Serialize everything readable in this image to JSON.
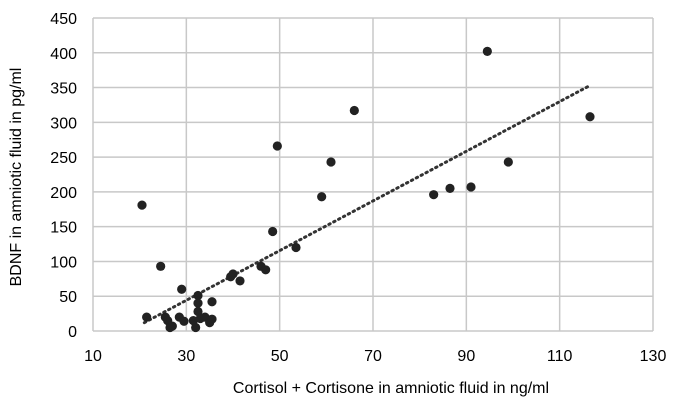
{
  "chart_data": {
    "type": "scatter",
    "xlabel": "Cortisol + Cortisone in amniotic fluid in ng/ml",
    "ylabel": "BDNF in amniotic fluid in pg/ml",
    "xlim": [
      10,
      130
    ],
    "ylim": [
      0,
      450
    ],
    "x_ticks": [
      10,
      30,
      50,
      70,
      90,
      110,
      130
    ],
    "y_ticks": [
      0,
      50,
      100,
      150,
      200,
      250,
      300,
      350,
      400,
      450
    ],
    "grid": true,
    "point_color": "#222222",
    "trendline": {
      "style": "dotted",
      "x": [
        21,
        116.5
      ],
      "y": [
        12,
        353
      ]
    },
    "points": [
      {
        "x": 20.5,
        "y": 181
      },
      {
        "x": 21.5,
        "y": 20
      },
      {
        "x": 24.5,
        "y": 93
      },
      {
        "x": 25.5,
        "y": 20
      },
      {
        "x": 26,
        "y": 15
      },
      {
        "x": 26.5,
        "y": 5
      },
      {
        "x": 27,
        "y": 7
      },
      {
        "x": 28.5,
        "y": 20
      },
      {
        "x": 29,
        "y": 60
      },
      {
        "x": 29.5,
        "y": 14
      },
      {
        "x": 31.5,
        "y": 15
      },
      {
        "x": 32,
        "y": 5
      },
      {
        "x": 32.5,
        "y": 28
      },
      {
        "x": 32.5,
        "y": 40
      },
      {
        "x": 32.5,
        "y": 51
      },
      {
        "x": 33,
        "y": 18
      },
      {
        "x": 34,
        "y": 20
      },
      {
        "x": 35,
        "y": 12
      },
      {
        "x": 35.5,
        "y": 17
      },
      {
        "x": 35.5,
        "y": 42
      },
      {
        "x": 39.5,
        "y": 78
      },
      {
        "x": 40,
        "y": 82
      },
      {
        "x": 41.5,
        "y": 72
      },
      {
        "x": 46,
        "y": 93
      },
      {
        "x": 47,
        "y": 88
      },
      {
        "x": 48.5,
        "y": 143
      },
      {
        "x": 49.5,
        "y": 266
      },
      {
        "x": 53.5,
        "y": 120
      },
      {
        "x": 59,
        "y": 193
      },
      {
        "x": 61,
        "y": 243
      },
      {
        "x": 66,
        "y": 317
      },
      {
        "x": 83,
        "y": 196
      },
      {
        "x": 86.5,
        "y": 205
      },
      {
        "x": 91,
        "y": 207
      },
      {
        "x": 94.5,
        "y": 402
      },
      {
        "x": 99,
        "y": 243
      },
      {
        "x": 116.5,
        "y": 308
      }
    ]
  }
}
